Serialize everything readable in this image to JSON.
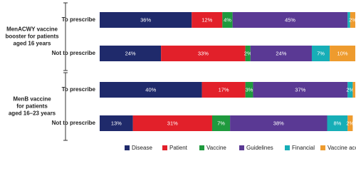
{
  "chart_data": {
    "type": "stacked-bar-horizontal",
    "groups": [
      {
        "label": [
          "MenACWY vaccine",
          "booster for patients",
          "aged 16 years"
        ]
      },
      {
        "label": [
          "MenB vaccine",
          "for patients",
          "aged 16–23 years"
        ]
      }
    ],
    "categories": [
      "To prescribe",
      "Not to prescribe",
      "To prescribe",
      "Not to prescribe"
    ],
    "xlim": [
      0,
      100
    ],
    "series": [
      {
        "name": "Disease",
        "color": "#1f2a6b",
        "values": [
          36,
          24,
          40,
          13
        ],
        "value_labels": [
          "36%",
          "24%",
          "40%",
          "13%"
        ]
      },
      {
        "name": "Patient",
        "color": "#e2202a",
        "values": [
          12,
          33,
          17,
          31
        ],
        "value_labels": [
          "12%",
          "33%",
          "17%",
          "31%"
        ]
      },
      {
        "name": "Vaccine",
        "color": "#1f9a3e",
        "values": [
          4,
          2,
          3,
          7
        ],
        "value_labels": [
          "4%",
          "2%",
          "3%",
          "7%"
        ]
      },
      {
        "name": "Guidelines",
        "color": "#5a3994",
        "values": [
          45,
          24,
          37,
          38
        ],
        "value_labels": [
          "45%",
          "24%",
          "37%",
          "38%"
        ]
      },
      {
        "name": "Financial",
        "color": "#17aeb7",
        "values": [
          1,
          7,
          2,
          8
        ],
        "value_labels": [
          null,
          "7%",
          "2%",
          "8%"
        ]
      },
      {
        "name": "Vaccine access",
        "color": "#ee9b2e",
        "values": [
          2,
          10,
          1,
          2
        ],
        "value_labels": [
          "2%",
          "10%",
          null,
          "2%"
        ]
      }
    ]
  }
}
